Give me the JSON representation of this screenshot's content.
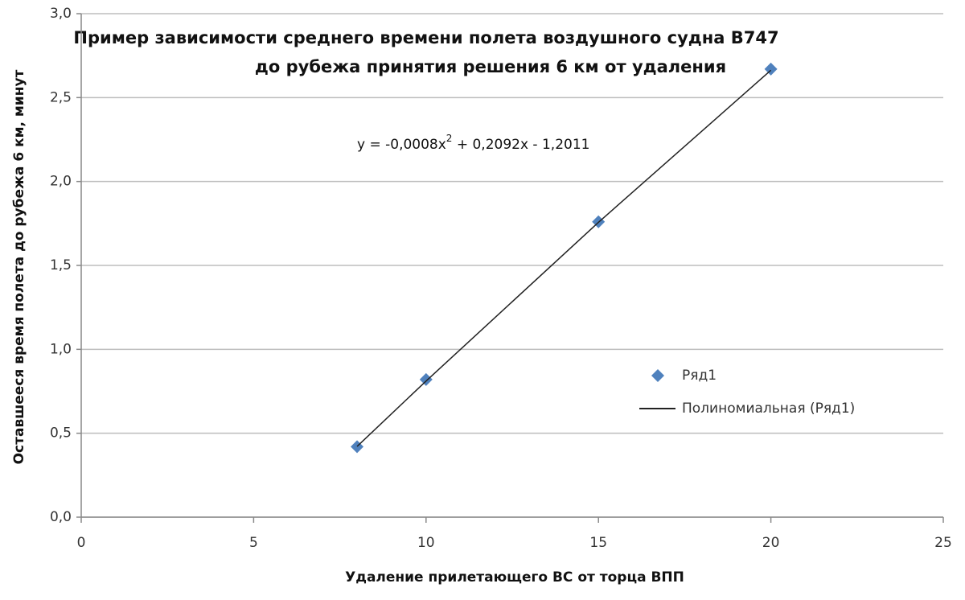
{
  "chart_data": {
    "type": "scatter",
    "title": [
      "Пример зависимости среднего времени полета воздушного судна B747",
      "до рубежа принятия решения 6 км от удаления"
    ],
    "x_label": "Удаление прилетающего ВС от торца ВПП",
    "y_label": "Оставшееся время полета до рубежа  6 км, минут",
    "annotation": [
      "y = -0,0008x",
      "2",
      " + 0,2092x - 1,2011"
    ],
    "series": [
      {
        "name": "Ряд1",
        "color": "#4f81bd",
        "x": [
          8,
          10,
          15,
          20
        ],
        "values": [
          0.42,
          0.82,
          1.76,
          2.67
        ]
      },
      {
        "name": "Полиномиальная (Ряд1)",
        "color": "#222222",
        "line": true,
        "x": [
          8,
          10,
          15,
          20
        ],
        "values": [
          0.4213,
          0.8109,
          1.7569,
          2.6629
        ]
      }
    ],
    "xlim": [
      0,
      25
    ],
    "xticks": [
      0,
      5,
      10,
      15,
      20,
      25
    ],
    "ylim": [
      0,
      3
    ],
    "yticks": [
      {
        "value": 0,
        "label": "0,0"
      },
      {
        "value": 0.5,
        "label": "0,5"
      },
      {
        "value": 1,
        "label": "1,0"
      },
      {
        "value": 1.5,
        "label": "1,5"
      },
      {
        "value": 2,
        "label": "2,0"
      },
      {
        "value": 2.5,
        "label": "2,5"
      },
      {
        "value": 3,
        "label": "3,0"
      }
    ],
    "grid": true,
    "legend": "right"
  }
}
